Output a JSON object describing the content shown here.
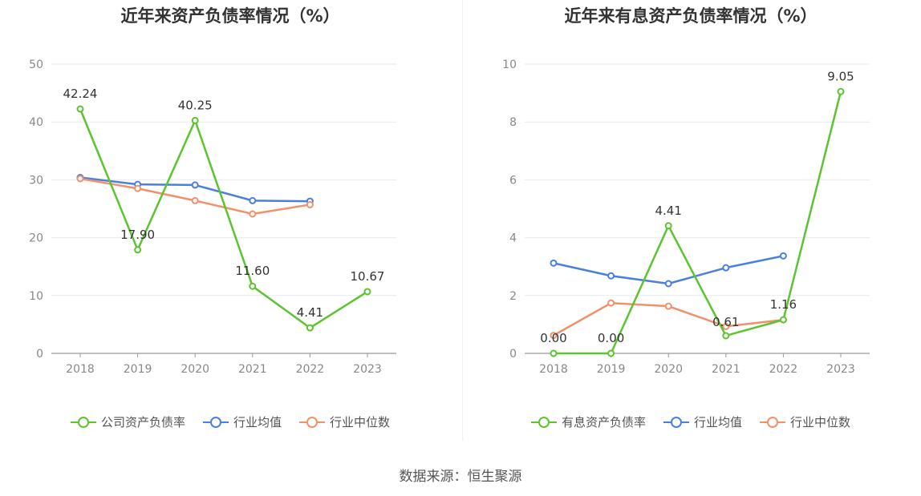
{
  "source_label": "数据来源：恒生聚源",
  "chart_data": [
    {
      "type": "line",
      "title": "近年来资产负债率情况（%）",
      "categories": [
        "2018",
        "2019",
        "2020",
        "2021",
        "2022",
        "2023"
      ],
      "ylim": [
        0,
        50
      ],
      "yticks": [
        "0",
        "10",
        "20",
        "30",
        "40",
        "50"
      ],
      "grid": true,
      "legend_position": "bottom",
      "series": [
        {
          "name": "公司资产负债率",
          "color": "#5cc42f",
          "values": [
            42.24,
            17.9,
            40.25,
            11.6,
            4.41,
            10.67
          ],
          "labels": [
            "42.24",
            "17.90",
            "40.25",
            "11.60",
            "4.41",
            "10.67"
          ]
        },
        {
          "name": "行业均值",
          "color": "#4a7fe0",
          "values": [
            30.4,
            29.2,
            29.1,
            26.4,
            26.3,
            null
          ]
        },
        {
          "name": "行业中位数",
          "color": "#f0916a",
          "values": [
            30.2,
            28.5,
            26.4,
            24.1,
            25.7,
            null
          ]
        }
      ]
    },
    {
      "type": "line",
      "title": "近年来有息资产负债率情况（%）",
      "categories": [
        "2018",
        "2019",
        "2020",
        "2021",
        "2022",
        "2023"
      ],
      "ylim": [
        0,
        10
      ],
      "yticks": [
        "0",
        "2",
        "4",
        "6",
        "8",
        "10"
      ],
      "grid": true,
      "legend_position": "bottom",
      "series": [
        {
          "name": "有息资产负债率",
          "color": "#5cc42f",
          "values": [
            0.0,
            0.0,
            4.41,
            0.61,
            1.16,
            9.05
          ],
          "labels": [
            "0.00",
            "0.00",
            "4.41",
            "0.61",
            "1.16",
            "9.05"
          ]
        },
        {
          "name": "行业均值",
          "color": "#4a7fe0",
          "values": [
            3.12,
            2.68,
            2.41,
            2.96,
            3.37,
            null
          ]
        },
        {
          "name": "行业中位数",
          "color": "#f0916a",
          "values": [
            0.62,
            1.74,
            1.63,
            0.93,
            1.16,
            null
          ]
        }
      ]
    }
  ]
}
